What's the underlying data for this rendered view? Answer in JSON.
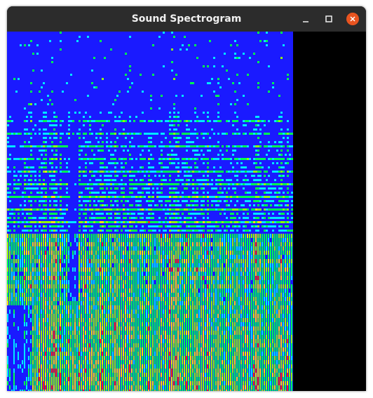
{
  "window": {
    "title": "Sound Spectrogram"
  }
}
